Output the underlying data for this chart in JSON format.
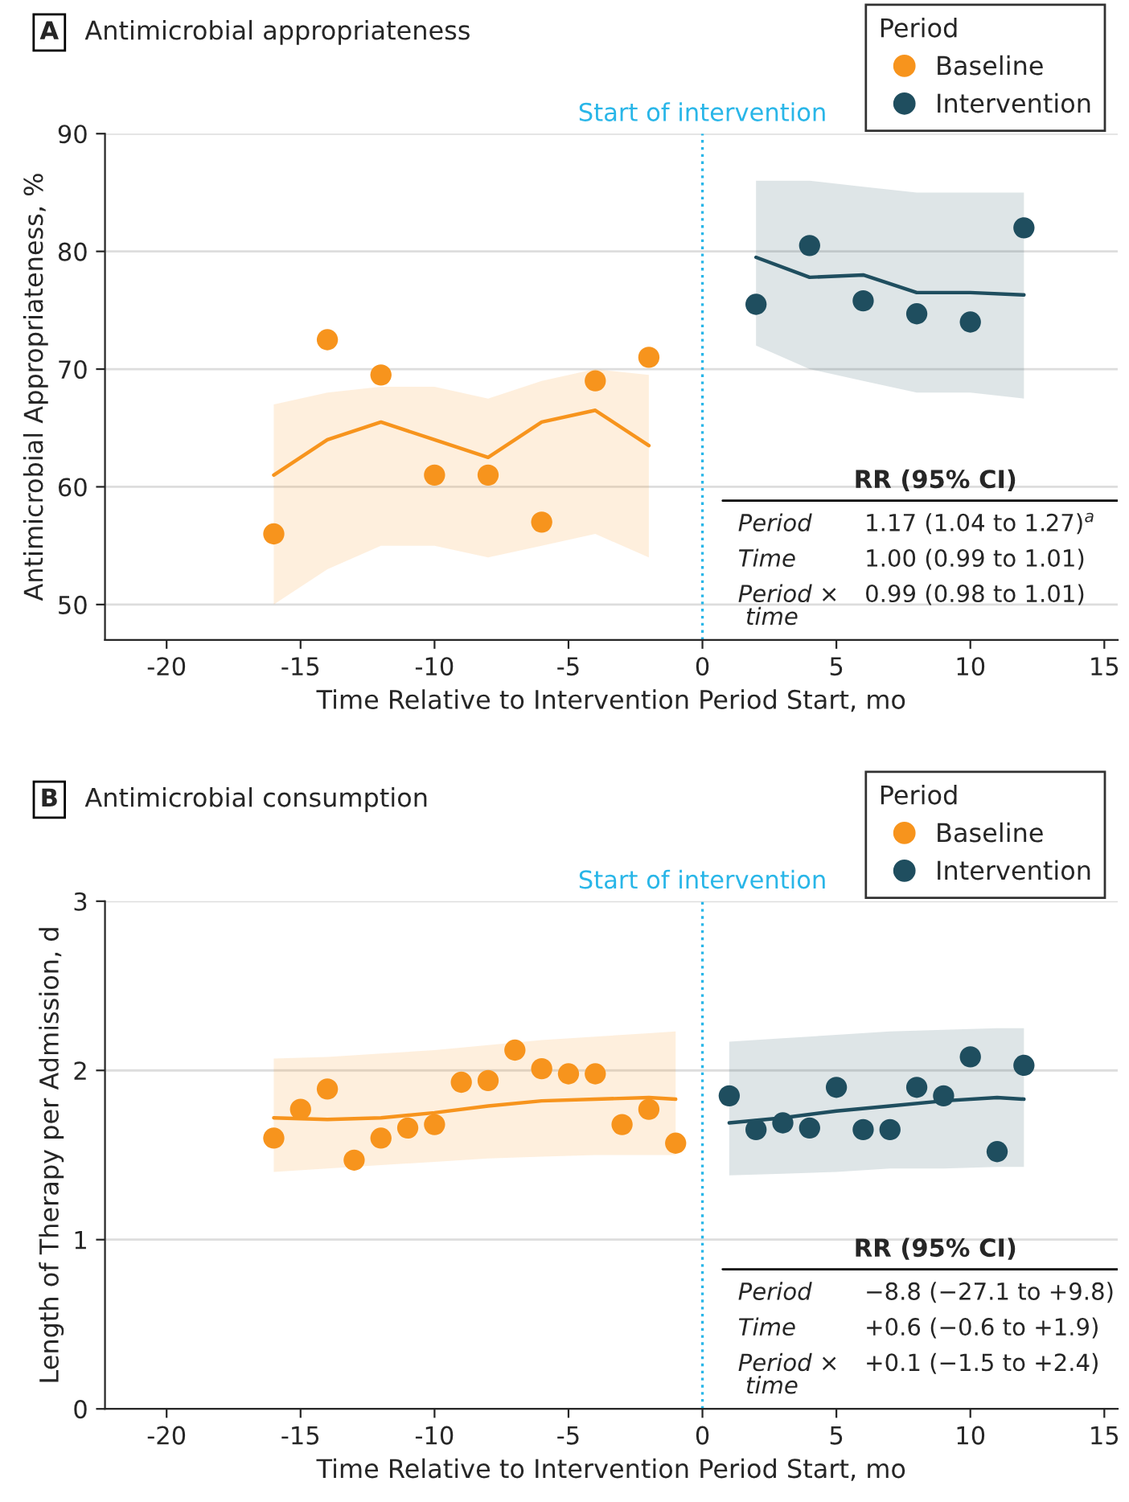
{
  "chart_data": [
    {
      "type": "scatter",
      "title": "A",
      "subtitle": "Antimicrobial appropriateness",
      "xlabel": "Time Relative to Intervention Period Start, mo",
      "ylabel": "Antimicrobial Appropriateness, %",
      "legend_title": "Period",
      "legend": "top right",
      "grid": "y",
      "xlim": [
        -22.3,
        15.5
      ],
      "xticks": [
        -20,
        -15,
        -10,
        -5,
        0,
        5,
        10,
        15
      ],
      "ylim": [
        47,
        90
      ],
      "yticks": [
        50,
        60,
        70,
        80,
        90
      ],
      "ref_lines": [
        {
          "axis": "x",
          "value": 0,
          "label": "Start of intervention",
          "color": "#29b6e8",
          "line_style": "dotted"
        }
      ],
      "series": [
        {
          "marker": "circle",
          "name": "Baseline",
          "color": "#f7941d",
          "x": [
            -16,
            -14,
            -12,
            -10,
            -8,
            -6,
            -4,
            -2
          ],
          "values": [
            56,
            72.5,
            69.5,
            61,
            61,
            57,
            69,
            71
          ]
        },
        {
          "marker": "circle",
          "name": "Intervention",
          "color": "#1f4e5f",
          "x": [
            2,
            4,
            6,
            8,
            10,
            12
          ],
          "values": [
            75.5,
            80.5,
            75.8,
            74.7,
            74,
            82
          ]
        },
        {
          "type": "line",
          "color": "#f7941d",
          "x": [
            -16,
            -14,
            -12,
            -10,
            -8,
            -6,
            -4,
            -2
          ],
          "values": [
            61,
            64,
            65.5,
            64,
            62.5,
            65.5,
            66.5,
            63.5
          ],
          "lower": [
            50,
            53,
            55,
            55,
            54,
            55,
            56,
            54
          ],
          "upper": [
            67,
            68,
            68.5,
            68.5,
            67.5,
            69,
            70,
            69.5
          ]
        },
        {
          "type": "line",
          "color": "#1f4e5f",
          "x": [
            2,
            4,
            6,
            8,
            10,
            12
          ],
          "values": [
            79.5,
            77.8,
            78,
            76.5,
            76.5,
            76.3
          ],
          "lower": [
            72,
            70,
            69,
            68,
            68,
            67.5
          ],
          "upper": [
            86,
            86,
            85.5,
            85,
            85,
            85
          ]
        }
      ],
      "annotations": [
        "RR (95% CI)",
        "Period",
        "1.17 (1.04 to 1.27)$^{a}$",
        "Time",
        "1.00 (0.99 to 1.01)",
        "Period ×\n time",
        "0.99 (0.98 to 1.01)"
      ]
    },
    {
      "type": "scatter",
      "title": "B",
      "subtitle": "Antimicrobial consumption",
      "xlabel": "Time Relative to Intervention Period Start, mo",
      "ylabel": "Length of Therapy per Admission, d",
      "legend_title": "Period",
      "legend": "top right",
      "grid": "y",
      "xlim": [
        -22.3,
        15.5
      ],
      "xticks": [
        -20,
        -15,
        -10,
        -5,
        0,
        5,
        10,
        15
      ],
      "ylim": [
        0,
        3
      ],
      "yticks": [
        0,
        1,
        2,
        3
      ],
      "ref_lines": [
        {
          "axis": "x",
          "value": 0,
          "label": "Start of intervention",
          "color": "#29b6e8",
          "line_style": "dotted"
        }
      ],
      "series": [
        {
          "marker": "circle",
          "name": "Baseline",
          "color": "#f7941d",
          "x": [
            -16,
            -15,
            -14,
            -13,
            -12,
            -11,
            -10,
            -9,
            -8,
            -7,
            -6,
            -5,
            -4,
            -3,
            -2,
            -1
          ],
          "values": [
            1.6,
            1.77,
            1.89,
            1.47,
            1.6,
            1.66,
            1.68,
            1.93,
            1.94,
            2.12,
            2.01,
            1.98,
            1.98,
            1.68,
            1.77,
            1.57
          ]
        },
        {
          "marker": "circle",
          "name": "Intervention",
          "color": "#1f4e5f",
          "x": [
            1,
            2,
            3,
            4,
            5,
            6,
            7,
            8,
            9,
            10,
            11,
            12
          ],
          "values": [
            1.85,
            1.65,
            1.69,
            1.66,
            1.9,
            1.65,
            1.65,
            1.9,
            1.85,
            2.08,
            1.52,
            2.03
          ]
        },
        {
          "type": "line",
          "color": "#f7941d",
          "x": [
            -16,
            -14,
            -12,
            -10,
            -8,
            -6,
            -4,
            -2,
            -1
          ],
          "values": [
            1.72,
            1.71,
            1.72,
            1.75,
            1.79,
            1.82,
            1.83,
            1.84,
            1.83
          ],
          "lower": [
            1.4,
            1.42,
            1.44,
            1.46,
            1.48,
            1.49,
            1.5,
            1.5,
            1.5
          ],
          "upper": [
            2.07,
            2.08,
            2.1,
            2.12,
            2.15,
            2.18,
            2.2,
            2.22,
            2.23
          ]
        },
        {
          "type": "line",
          "color": "#1f4e5f",
          "x": [
            1,
            3,
            5,
            7,
            9,
            11,
            12
          ],
          "values": [
            1.69,
            1.72,
            1.76,
            1.79,
            1.82,
            1.84,
            1.83
          ],
          "lower": [
            1.38,
            1.39,
            1.4,
            1.42,
            1.42,
            1.43,
            1.43
          ],
          "upper": [
            2.17,
            2.19,
            2.21,
            2.23,
            2.24,
            2.25,
            2.25
          ]
        }
      ],
      "annotations": [
        "RR (95% CI)",
        "Period",
        "−8.8 (−27.1 to +9.8)",
        "Time",
        "+0.6 (−0.6 to +1.9)",
        "Period ×\n time",
        "+0.1 (−1.5 to +2.4)"
      ]
    }
  ]
}
